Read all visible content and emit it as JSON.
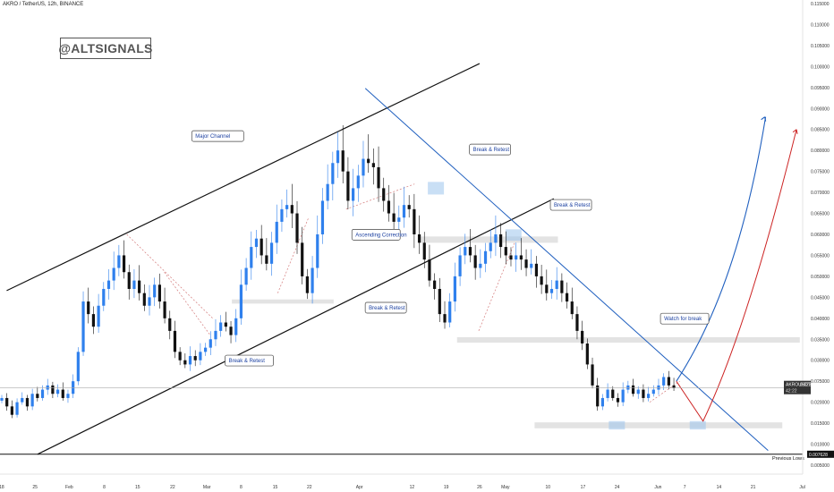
{
  "header": {
    "pair_title": "AKRO / TetherUS, 12h, BINANCE"
  },
  "watermark": "@ALTSIGNALS",
  "chart_data": {
    "type": "candlestick",
    "symbol": "AKROUSDT",
    "timeframe": "12h",
    "exchange": "BINANCE",
    "y_scale": "linear",
    "ylim": [
      0.005,
      0.115
    ],
    "y_ticks": [
      "0.115000",
      "0.110000",
      "0.105000",
      "0.100000",
      "0.095000",
      "0.090000",
      "0.085000",
      "0.080000",
      "0.075000",
      "0.070000",
      "0.065000",
      "0.060000",
      "0.055000",
      "0.050000",
      "0.045000",
      "0.040000",
      "0.035000",
      "0.030000",
      "0.025000",
      "0.020000",
      "0.015000",
      "0.010000",
      "0.005000"
    ],
    "x_ticks": [
      "18",
      "25",
      "Feb",
      "8",
      "15",
      "22",
      "Mar",
      "8",
      "15",
      "22",
      "Apr",
      "12",
      "19",
      "26",
      "May",
      "10",
      "17",
      "24",
      "Jun",
      "7",
      "14",
      "21",
      "Jul"
    ],
    "current_price_label": "AKROUSDT",
    "current_price": "0.023400",
    "countdown": "42:22",
    "previous_lows_value": "0.007628",
    "close_series": [
      0.021,
      0.019,
      0.017,
      0.02,
      0.021,
      0.019,
      0.022,
      0.021,
      0.023,
      0.024,
      0.022,
      0.023,
      0.021,
      0.022,
      0.025,
      0.032,
      0.044,
      0.041,
      0.038,
      0.043,
      0.047,
      0.049,
      0.052,
      0.055,
      0.051,
      0.047,
      0.049,
      0.046,
      0.043,
      0.045,
      0.048,
      0.044,
      0.04,
      0.037,
      0.032,
      0.03,
      0.029,
      0.031,
      0.03,
      0.032,
      0.033,
      0.035,
      0.037,
      0.039,
      0.038,
      0.036,
      0.04,
      0.048,
      0.052,
      0.057,
      0.059,
      0.055,
      0.053,
      0.058,
      0.063,
      0.066,
      0.067,
      0.065,
      0.058,
      0.05,
      0.046,
      0.052,
      0.06,
      0.068,
      0.072,
      0.077,
      0.08,
      0.075,
      0.068,
      0.071,
      0.074,
      0.078,
      0.077,
      0.076,
      0.071,
      0.068,
      0.065,
      0.063,
      0.064,
      0.067,
      0.066,
      0.06,
      0.058,
      0.054,
      0.049,
      0.047,
      0.041,
      0.039,
      0.044,
      0.05,
      0.055,
      0.057,
      0.055,
      0.052,
      0.053,
      0.056,
      0.058,
      0.06,
      0.057,
      0.055,
      0.054,
      0.055,
      0.054,
      0.052,
      0.053,
      0.05,
      0.048,
      0.046,
      0.047,
      0.049,
      0.046,
      0.044,
      0.041,
      0.037,
      0.034,
      0.029,
      0.024,
      0.019,
      0.021,
      0.023,
      0.021,
      0.02,
      0.023,
      0.024,
      0.022,
      0.023,
      0.021,
      0.022,
      0.023,
      0.024,
      0.026,
      0.024,
      0.0234
    ],
    "series": [
      {
        "name": "Major Channel upper",
        "kind": "trendline",
        "points": [
          [
            0.008,
            0.0466
          ],
          [
            0.575,
            0.1007
          ]
        ]
      },
      {
        "name": "Major Channel lower",
        "kind": "trendline",
        "points": [
          [
            0.045,
            0.0076
          ],
          [
            0.664,
            0.0685
          ]
        ]
      },
      {
        "name": "Descending resistance",
        "kind": "trendline",
        "points": [
          [
            0.438,
            0.0948
          ],
          [
            0.921,
            0.0085
          ]
        ]
      },
      {
        "name": "Previous Lows",
        "kind": "hline",
        "value": 0.0076
      }
    ],
    "support_zones": [
      {
        "from": 0.0595,
        "to": 0.058
      },
      {
        "from": 0.0445,
        "to": 0.0435
      },
      {
        "from": 0.0355,
        "to": 0.0342
      },
      {
        "from": 0.0152,
        "to": 0.0138
      }
    ],
    "projections": [
      {
        "name": "Bullish breakout path",
        "color": "#1f5fbf"
      },
      {
        "name": "Retest then rally path",
        "color": "#cc2222"
      }
    ],
    "annotations": [
      "Major Channel",
      "Break & Retest",
      "Ascending Correction",
      "Break & Retest",
      "Break & Retest",
      "Break & Retest",
      "Watch for break",
      "Previous Lows"
    ]
  }
}
